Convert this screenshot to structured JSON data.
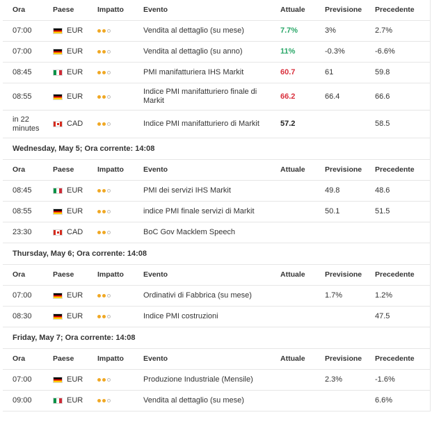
{
  "headers": {
    "time": "Ora",
    "country": "Paese",
    "impact": "Impatto",
    "event": "Evento",
    "actual": "Attuale",
    "forecast": "Previsione",
    "previous": "Precedente"
  },
  "days": [
    {
      "title": "",
      "events": [
        {
          "time": "07:00",
          "flag": "de",
          "currency": "EUR",
          "impact": 2,
          "event": "Vendita al dettaglio (su mese)",
          "actual": "7.7%",
          "actual_tone": "up",
          "forecast": "3%",
          "previous": "2.7%"
        },
        {
          "time": "07:00",
          "flag": "de",
          "currency": "EUR",
          "impact": 2,
          "event": "Vendita al dettaglio (su anno)",
          "actual": "11%",
          "actual_tone": "up",
          "forecast": "-0.3%",
          "previous": "-6.6%"
        },
        {
          "time": "08:45",
          "flag": "it",
          "currency": "EUR",
          "impact": 2,
          "event": "PMI manifatturiera IHS Markit",
          "actual": "60.7",
          "actual_tone": "down",
          "forecast": "61",
          "previous": "59.8"
        },
        {
          "time": "08:55",
          "flag": "de",
          "currency": "EUR",
          "impact": 2,
          "event": "Indice PMI manifatturiero finale di Markit",
          "actual": "66.2",
          "actual_tone": "down",
          "forecast": "66.4",
          "previous": "66.6"
        },
        {
          "time": "in 22 minutes",
          "flag": "ca",
          "currency": "CAD",
          "impact": 2,
          "event": "Indice PMI manifatturiero di Markit",
          "actual": "57.2",
          "actual_tone": "neutral",
          "forecast": "",
          "previous": "58.5"
        }
      ]
    },
    {
      "title": "Wednesday, May 5; Ora corrente: 14:08",
      "events": [
        {
          "time": "08:45",
          "flag": "it",
          "currency": "EUR",
          "impact": 2,
          "event": "PMI dei servizi IHS Markit",
          "actual": "",
          "actual_tone": "",
          "forecast": "49.8",
          "previous": "48.6"
        },
        {
          "time": "08:55",
          "flag": "de",
          "currency": "EUR",
          "impact": 2,
          "event": "indice PMI finale servizi di Markit",
          "actual": "",
          "actual_tone": "",
          "forecast": "50.1",
          "previous": "51.5"
        },
        {
          "time": "23:30",
          "flag": "ca",
          "currency": "CAD",
          "impact": 2,
          "event": "BoC Gov Macklem Speech",
          "actual": "",
          "actual_tone": "",
          "forecast": "",
          "previous": ""
        }
      ]
    },
    {
      "title": "Thursday, May 6; Ora corrente: 14:08",
      "events": [
        {
          "time": "07:00",
          "flag": "de",
          "currency": "EUR",
          "impact": 2,
          "event": "Ordinativi di Fabbrica (su mese)",
          "actual": "",
          "actual_tone": "",
          "forecast": "1.7%",
          "previous": "1.2%"
        },
        {
          "time": "08:30",
          "flag": "de",
          "currency": "EUR",
          "impact": 2,
          "event": "Indice PMI costruzioni",
          "actual": "",
          "actual_tone": "",
          "forecast": "",
          "previous": "47.5"
        }
      ]
    },
    {
      "title": "Friday, May 7; Ora corrente: 14:08",
      "events": [
        {
          "time": "07:00",
          "flag": "de",
          "currency": "EUR",
          "impact": 2,
          "event": "Produzione Industriale (Mensile)",
          "actual": "",
          "actual_tone": "",
          "forecast": "2.3%",
          "previous": "-1.6%"
        },
        {
          "time": "09:00",
          "flag": "it",
          "currency": "EUR",
          "impact": 2,
          "event": "Vendita al dettaglio (su mese)",
          "actual": "",
          "actual_tone": "",
          "forecast": "",
          "previous": "6.6%"
        }
      ]
    }
  ],
  "colors": {
    "impact_on": "#f0a824",
    "impact_off": "#ffffff",
    "up": "#2aa768",
    "down": "#d9303d"
  }
}
